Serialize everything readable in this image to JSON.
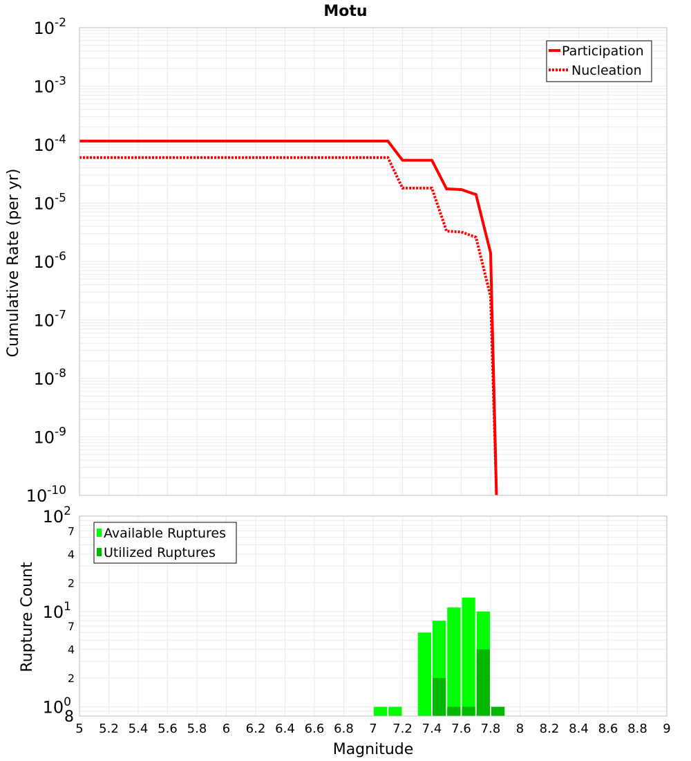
{
  "chart_data": [
    {
      "type": "line",
      "title": "Motu",
      "xlabel": "",
      "ylabel": "Cumulative Rate (per yr)",
      "xlim": [
        5,
        9
      ],
      "ylim": [
        1e-10,
        0.01
      ],
      "yscale": "log",
      "y_ticks": [
        {
          "base": "10",
          "exp": "-10"
        },
        {
          "base": "10",
          "exp": "-9"
        },
        {
          "base": "10",
          "exp": "-8"
        },
        {
          "base": "10",
          "exp": "-7"
        },
        {
          "base": "10",
          "exp": "-6"
        },
        {
          "base": "10",
          "exp": "-5"
        },
        {
          "base": "10",
          "exp": "-4"
        },
        {
          "base": "10",
          "exp": "-3"
        },
        {
          "base": "10",
          "exp": "-2"
        }
      ],
      "legend_position": "top-right",
      "series": [
        {
          "name": "Participation",
          "color": "#ff0000",
          "style": "solid",
          "x": [
            5.0,
            7.1,
            7.2,
            7.4,
            7.5,
            7.6,
            7.7,
            7.8,
            7.84
          ],
          "y": [
            0.000115,
            0.000115,
            5.4e-05,
            5.4e-05,
            1.75e-05,
            1.7e-05,
            1.4e-05,
            1.4e-06,
            1e-10
          ]
        },
        {
          "name": "Nucleation",
          "color": "#ff0000",
          "style": "dotted",
          "x": [
            5.0,
            7.1,
            7.2,
            7.4,
            7.5,
            7.6,
            7.7,
            7.8,
            7.84
          ],
          "y": [
            6e-05,
            6e-05,
            1.8e-05,
            1.8e-05,
            3.3e-06,
            3.2e-06,
            2.6e-06,
            2.5e-07,
            1e-10
          ]
        }
      ]
    },
    {
      "type": "bar",
      "title": "",
      "xlabel": "Magnitude",
      "ylabel": "Rupture Count",
      "xlim": [
        5,
        9
      ],
      "ylim": [
        0.8,
        100
      ],
      "yscale": "log",
      "bin_width": 0.1,
      "x_ticks": [
        "5",
        "5.2",
        "5.4",
        "5.6",
        "5.8",
        "6",
        "6.2",
        "6.4",
        "6.6",
        "6.8",
        "7",
        "7.2",
        "7.4",
        "7.6",
        "7.8",
        "8",
        "8.2",
        "8.4",
        "8.6",
        "8.8",
        "9"
      ],
      "y_major_ticks": [
        {
          "base": "10",
          "exp": "0"
        },
        {
          "base": "10",
          "exp": "1"
        },
        {
          "base": "10",
          "exp": "2"
        }
      ],
      "y_minor_ticks": [
        "8",
        "2",
        "4",
        "7",
        "2",
        "4",
        "7"
      ],
      "legend_position": "top-left",
      "series": [
        {
          "name": "Available Ruptures",
          "color": "#00ff00",
          "x": [
            7.05,
            7.15,
            7.35,
            7.45,
            7.55,
            7.65,
            7.75
          ],
          "values": [
            1,
            1,
            6,
            8,
            11,
            14,
            10
          ]
        },
        {
          "name": "Utilized Ruptures",
          "color": "#00b800",
          "x": [
            7.45,
            7.55,
            7.65,
            7.75,
            7.85
          ],
          "values": [
            2,
            1,
            1,
            4,
            1
          ]
        }
      ]
    }
  ]
}
